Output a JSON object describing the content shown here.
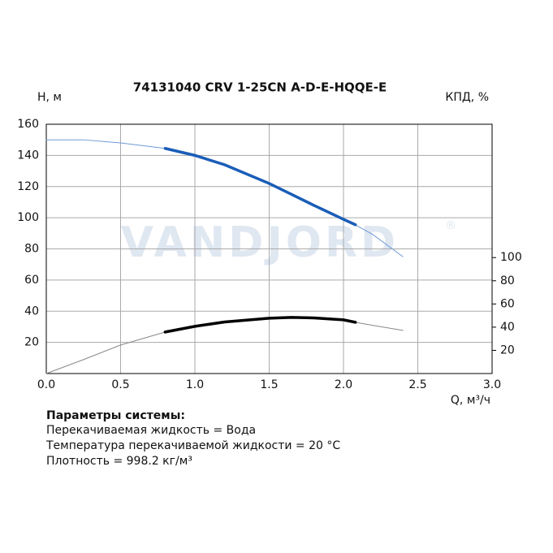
{
  "chart_data": {
    "type": "line",
    "title": "74131040 CRV 1-25CN A-D-E-HQQE-E",
    "ylabel": "H, м",
    "y2label": "КПД, %",
    "xlabel": "Q, м³/ч",
    "watermark": "VANDJORD",
    "watermark_mark": "®",
    "x": [
      0,
      0.25,
      0.5,
      0.8,
      1.0,
      1.2,
      1.5,
      1.65,
      1.8,
      2.0,
      2.08,
      2.2,
      2.4
    ],
    "series": [
      {
        "color": "#6f9bd6",
        "width": 1,
        "values": [
          150,
          150,
          148,
          144.5,
          140,
          134,
          122,
          115,
          108,
          99,
          95.5,
          89,
          75
        ]
      },
      {
        "color": "#1a5db8",
        "width": 3.5,
        "values": [
          null,
          null,
          null,
          144.5,
          140,
          134,
          122,
          115,
          108,
          99,
          95.5,
          null,
          null
        ]
      },
      {
        "color": "#888888",
        "width": 1,
        "axis": "y2",
        "values": [
          0,
          12,
          24.6,
          35.8,
          40.7,
          44.5,
          47.7,
          48.4,
          48,
          46.3,
          44.2,
          41.5,
          37.2
        ]
      },
      {
        "color": "#000000",
        "width": 3.5,
        "axis": "y2",
        "values": [
          null,
          null,
          null,
          35.8,
          40.7,
          44.5,
          47.7,
          48.4,
          48,
          46.3,
          44.2,
          null,
          null
        ]
      }
    ],
    "xlim": [
      0,
      3
    ],
    "ylim": [
      0,
      160
    ],
    "y2lim": [
      0,
      215
    ],
    "xticks": [
      {
        "value": 0,
        "label": "0.0"
      },
      0.5,
      {
        "value": 1,
        "label": "1.0"
      },
      1.5,
      {
        "value": 2,
        "label": "2.0"
      },
      2.5,
      {
        "value": 3,
        "label": "3.0"
      }
    ],
    "yticks": [
      20,
      40,
      60,
      80,
      100,
      120,
      140,
      160
    ],
    "y2ticks": [
      20,
      40,
      60,
      80,
      100
    ],
    "grid": true
  },
  "parameters": {
    "title": "Параметры системы:",
    "lines": [
      "Перекачиваемая жидкость = Вода",
      "Температура перекачиваемой жидкости = 20 °C",
      "Плотность = 998.2 кг/м³"
    ]
  }
}
